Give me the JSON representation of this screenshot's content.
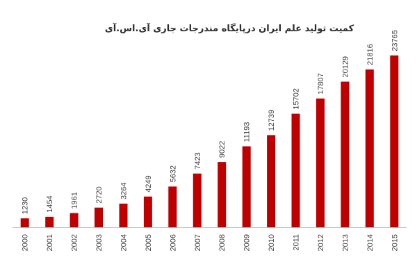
{
  "chart_data": {
    "type": "bar",
    "title": "کمیت تولید علم ایران درپایگاه مندرجات جاری آی.اس.آی",
    "xlabel": "",
    "ylabel": "",
    "categories": [
      "2000",
      "2001",
      "2002",
      "2003",
      "2004",
      "2005",
      "2006",
      "2007",
      "2008",
      "2009",
      "2010",
      "2011",
      "2012",
      "2013",
      "2014",
      "2015"
    ],
    "series": [
      {
        "values": [
          1230,
          1454,
          1961,
          2720,
          3264,
          4249,
          5632,
          7423,
          9022,
          11193,
          12739,
          15702,
          17807,
          20129,
          21816,
          23765
        ]
      }
    ],
    "ylim": [
      0,
      24500
    ],
    "bar_color": "#c00000",
    "grid": false,
    "legend": "none",
    "data_labels": true
  }
}
